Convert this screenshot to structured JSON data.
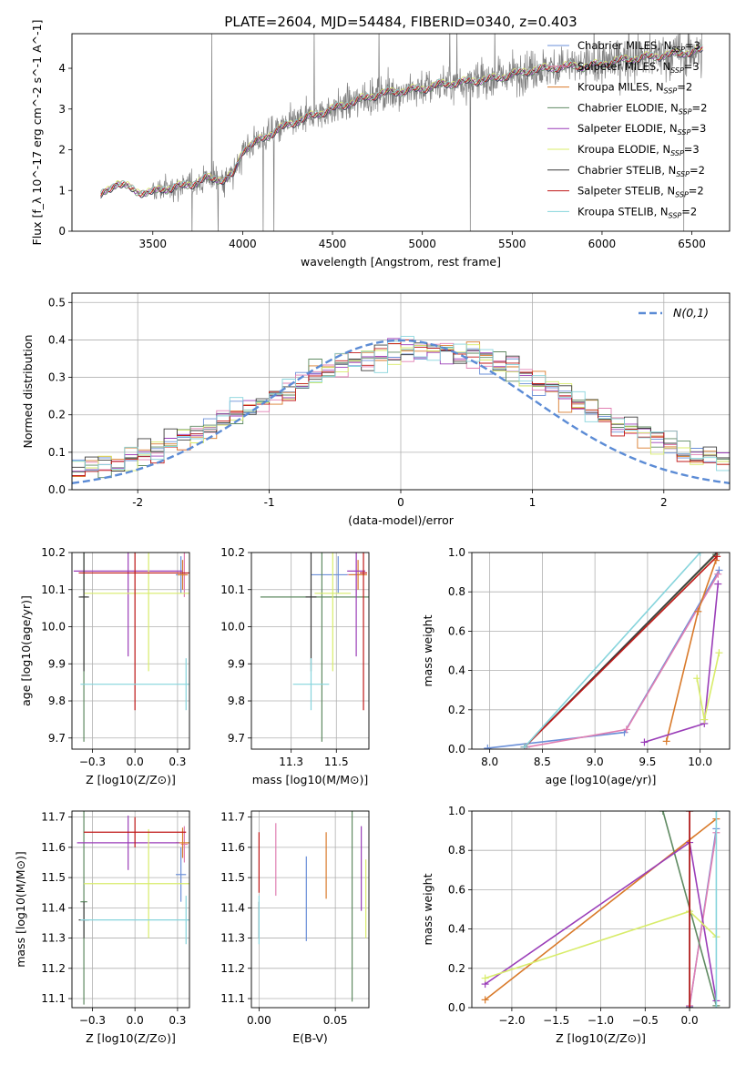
{
  "figure": {
    "title": "PLATE=2604, MJD=54484, FIBERID=0340, z=0.403"
  },
  "models": [
    {
      "name": "Chabrier MILES",
      "nssp": "3",
      "color": "#6a8fd8"
    },
    {
      "name": "Salpeter MILES",
      "nssp": "3",
      "color": "#e07fb2"
    },
    {
      "name": "Kroupa MILES",
      "nssp": "2",
      "color": "#d97a2a"
    },
    {
      "name": "Chabrier ELODIE",
      "nssp": "2",
      "color": "#5f8a62"
    },
    {
      "name": "Salpeter ELODIE",
      "nssp": "3",
      "color": "#9a3db8"
    },
    {
      "name": "Kroupa ELODIE",
      "nssp": "3",
      "color": "#d8ec6a"
    },
    {
      "name": "Chabrier STELIB",
      "nssp": "2",
      "color": "#3c3c3c"
    },
    {
      "name": "Salpeter STELIB",
      "nssp": "2",
      "color": "#c01818"
    },
    {
      "name": "Kroupa STELIB",
      "nssp": "2",
      "color": "#86d4dc"
    }
  ],
  "chart_data": [
    {
      "type": "line",
      "id": "spectrum",
      "xlabel": "wavelength [Angstrom, rest frame]",
      "ylabel": "Flux [f_λ 10^-17 erg cm^-2 s^-1 A^-1]",
      "xlim": [
        3050,
        6710
      ],
      "ylim": [
        0,
        4.85
      ],
      "xticks": [
        3500,
        4000,
        4500,
        5000,
        5500,
        6000,
        6500
      ],
      "yticks": [
        0,
        1,
        2,
        3,
        4
      ],
      "continuum": {
        "x": [
          3210,
          3260,
          3300,
          3350,
          3400,
          3450,
          3500,
          3550,
          3600,
          3650,
          3700,
          3750,
          3800,
          3850,
          3900,
          3950,
          4000,
          4100,
          4200,
          4300,
          4400,
          4500,
          4600,
          4700,
          4800,
          4900,
          5000,
          5100,
          5200,
          5300,
          5400,
          5500,
          5600,
          5700,
          5800,
          5900,
          6000,
          6100,
          6200,
          6300,
          6400,
          6500,
          6560
        ],
        "y": [
          0.85,
          1.05,
          1.2,
          1.1,
          1.0,
          0.95,
          0.95,
          1.05,
          1.05,
          1.1,
          1.15,
          1.2,
          1.3,
          1.3,
          1.25,
          1.4,
          2.0,
          2.25,
          2.5,
          2.7,
          2.85,
          3.0,
          3.15,
          3.3,
          3.4,
          3.45,
          3.5,
          3.6,
          3.65,
          3.7,
          3.75,
          3.85,
          3.95,
          4.0,
          4.05,
          4.05,
          4.1,
          4.2,
          4.25,
          4.3,
          4.35,
          4.4,
          4.45
        ]
      },
      "data_noise_start": 3500
    },
    {
      "type": "histogram",
      "id": "residuals",
      "xlabel": "(data-model)/error",
      "ylabel": "Normed distribution",
      "xlim": [
        -2.5,
        2.5
      ],
      "ylim": [
        0,
        0.525
      ],
      "xticks": [
        -2,
        -1,
        0,
        1,
        2
      ],
      "yticks": [
        0.0,
        0.1,
        0.2,
        0.3,
        0.4,
        0.5
      ],
      "bin_width": 0.1,
      "gaussian_label": "N(0,1)",
      "gaussian_color": "#5b8bd5",
      "legend_position": "top-right"
    },
    {
      "type": "errorbar",
      "id": "age-vs-Z",
      "xlabel": "Z [log10(Z/Z⊙)]",
      "ylabel": "age  [log10(age/yr)]",
      "xlim": [
        -0.37,
        0.32
      ],
      "ylim": [
        9.67,
        10.2
      ],
      "xticks": [
        -0.25,
        0.0,
        0.25
      ],
      "yticks": [
        9.7,
        9.8,
        9.9,
        10.0,
        10.1,
        10.2
      ],
      "points": [
        {
          "model": 0,
          "x": 0.27,
          "y": 10.14,
          "xerr": 0.03,
          "yerr": 0.05
        },
        {
          "model": 1,
          "x": 0.29,
          "y": 10.14,
          "xerr": 0.02,
          "yerr": 0.06
        },
        {
          "model": 2,
          "x": 0.28,
          "y": 10.14,
          "xerr": 0.03,
          "yerr": 0.04
        },
        {
          "model": 3,
          "x": -0.3,
          "y": 10.08,
          "xerr": 0.02,
          "yerr": 0.39
        },
        {
          "model": 4,
          "x": -0.04,
          "y": 10.15,
          "xerr": 0.32,
          "yerr": 0.23
        },
        {
          "model": 5,
          "x": 0.08,
          "y": 10.09,
          "xerr": 0.38,
          "yerr": 0.21
        },
        {
          "model": 6,
          "x": -0.3,
          "y": 10.08,
          "xerr": 0.03,
          "yerr": 0.2
        },
        {
          "model": 7,
          "x": 0.0,
          "y": 10.145,
          "xerr": 0.33,
          "yerr": 0.37
        },
        {
          "model": 8,
          "x": 0.3,
          "y": 9.845,
          "xerr": 0.62,
          "yerr": 0.07
        }
      ]
    },
    {
      "type": "errorbar",
      "id": "age-vs-mass",
      "xlabel": "mass [log10(M/M⊙)]",
      "ylabel": "",
      "xlim": [
        11.03,
        11.68
      ],
      "ylim": [
        9.67,
        10.2
      ],
      "xticks": [
        11.25,
        11.5
      ],
      "yticks": [
        9.7,
        9.8,
        9.9,
        10.0,
        10.1,
        10.2
      ],
      "points": [
        {
          "model": 0,
          "x": 11.51,
          "y": 10.14,
          "xerr": 0.15,
          "yerr": 0.05
        },
        {
          "model": 1,
          "x": 11.61,
          "y": 10.14,
          "xerr": 0.05,
          "yerr": 0.06
        },
        {
          "model": 2,
          "x": 11.62,
          "y": 10.14,
          "xerr": 0.05,
          "yerr": 0.04
        },
        {
          "model": 3,
          "x": 11.42,
          "y": 10.08,
          "xerr": 0.34,
          "yerr": 0.39
        },
        {
          "model": 4,
          "x": 11.61,
          "y": 10.15,
          "xerr": 0.05,
          "yerr": 0.23
        },
        {
          "model": 5,
          "x": 11.48,
          "y": 10.09,
          "xerr": 0.1,
          "yerr": 0.21
        },
        {
          "model": 6,
          "x": 11.36,
          "y": 10.08,
          "xerr": 0.03,
          "yerr": 0.2
        },
        {
          "model": 7,
          "x": 11.65,
          "y": 10.145,
          "xerr": 0.02,
          "yerr": 0.37
        },
        {
          "model": 8,
          "x": 11.36,
          "y": 9.845,
          "xerr": 0.1,
          "yerr": 0.07
        }
      ]
    },
    {
      "type": "line",
      "id": "massweight-vs-age",
      "xlabel": "age  [log10(age/yr)]",
      "ylabel": "mass weight",
      "xlim": [
        7.83,
        10.28
      ],
      "ylim": [
        0,
        1.0
      ],
      "xticks": [
        8.0,
        8.5,
        9.0,
        9.5,
        10.0
      ],
      "yticks": [
        0.0,
        0.2,
        0.4,
        0.6,
        0.8,
        1.0
      ],
      "series": [
        {
          "model": 0,
          "x": [
            7.98,
            9.28,
            10.18
          ],
          "y": [
            0.005,
            0.085,
            0.91
          ]
        },
        {
          "model": 1,
          "x": [
            8.35,
            9.3,
            10.17
          ],
          "y": [
            0.01,
            0.1,
            0.89
          ]
        },
        {
          "model": 2,
          "x": [
            9.68,
            9.98,
            10.15
          ],
          "y": [
            0.04,
            0.7,
            0.96
          ]
        },
        {
          "model": 3,
          "x": [
            8.33,
            10.15
          ],
          "y": [
            0.01,
            0.99
          ]
        },
        {
          "model": 4,
          "x": [
            9.47,
            10.04,
            10.17
          ],
          "y": [
            0.035,
            0.13,
            0.84
          ]
        },
        {
          "model": 5,
          "x": [
            9.97,
            10.04,
            10.18
          ],
          "y": [
            0.36,
            0.15,
            0.49
          ]
        },
        {
          "model": 6,
          "x": [
            8.33,
            10.16
          ],
          "y": [
            0.01,
            1.0
          ]
        },
        {
          "model": 7,
          "x": [
            8.33,
            10.16
          ],
          "y": [
            0.01,
            0.98
          ]
        },
        {
          "model": 8,
          "x": [
            8.33,
            10.0
          ],
          "y": [
            0.01,
            1.0
          ]
        }
      ]
    },
    {
      "type": "errorbar",
      "id": "mass-vs-Z",
      "xlabel": "Z [log10(Z/Z⊙)]",
      "ylabel": "mass [log10(M/M⊙)]",
      "xlim": [
        -0.37,
        0.32
      ],
      "ylim": [
        11.07,
        11.72
      ],
      "xticks": [
        -0.25,
        0.0,
        0.25
      ],
      "yticks": [
        11.1,
        11.2,
        11.3,
        11.4,
        11.5,
        11.6,
        11.7
      ],
      "points": [
        {
          "model": 0,
          "x": 0.27,
          "y": 11.51,
          "xerr": 0.03,
          "yerr": 0.09
        },
        {
          "model": 1,
          "x": 0.29,
          "y": 11.61,
          "xerr": 0.02,
          "yerr": 0.06
        },
        {
          "model": 2,
          "x": 0.28,
          "y": 11.615,
          "xerr": 0.04,
          "yerr": 0.05
        },
        {
          "model": 3,
          "x": -0.3,
          "y": 11.42,
          "xerr": 0.02,
          "yerr": 0.34
        },
        {
          "model": 4,
          "x": -0.04,
          "y": 11.615,
          "xerr": 0.3,
          "yerr": 0.09
        },
        {
          "model": 5,
          "x": 0.08,
          "y": 11.48,
          "xerr": 0.38,
          "yerr": 0.18
        },
        {
          "model": 6,
          "x": -0.3,
          "y": 11.36,
          "xerr": 0.03,
          "yerr": 0.06
        },
        {
          "model": 7,
          "x": 0.0,
          "y": 11.65,
          "xerr": 0.3,
          "yerr": 0.05
        },
        {
          "model": 8,
          "x": 0.3,
          "y": 11.36,
          "xerr": 0.62,
          "yerr": 0.08
        }
      ]
    },
    {
      "type": "errorbar",
      "id": "mass-vs-ebv",
      "xlabel": "E(B-V)",
      "ylabel": "",
      "xlim": [
        -0.005,
        0.072
      ],
      "ylim": [
        11.07,
        11.72
      ],
      "xticks": [
        0.0,
        0.05
      ],
      "yticks": [
        11.1,
        11.2,
        11.3,
        11.4,
        11.5,
        11.6,
        11.7
      ],
      "points": [
        {
          "model": 0,
          "x": 0.031,
          "y": 11.43,
          "xerr": 0,
          "yerr": 0.14
        },
        {
          "model": 1,
          "x": 0.011,
          "y": 11.56,
          "xerr": 0,
          "yerr": 0.12
        },
        {
          "model": 2,
          "x": 0.044,
          "y": 11.54,
          "xerr": 0,
          "yerr": 0.11
        },
        {
          "model": 3,
          "x": 0.061,
          "y": 11.42,
          "xerr": 0,
          "yerr": 0.33
        },
        {
          "model": 4,
          "x": 0.067,
          "y": 11.53,
          "xerr": 0,
          "yerr": 0.14
        },
        {
          "model": 5,
          "x": 0.07,
          "y": 11.43,
          "xerr": 0,
          "yerr": 0.13
        },
        {
          "model": 6,
          "x": 0.0,
          "y": 11.36,
          "xerr": 0,
          "yerr": 0.06
        },
        {
          "model": 7,
          "x": 0.0,
          "y": 11.55,
          "xerr": 0,
          "yerr": 0.1
        },
        {
          "model": 8,
          "x": 0.0,
          "y": 11.36,
          "xerr": 0,
          "yerr": 0.08
        }
      ]
    },
    {
      "type": "line",
      "id": "massweight-vs-Z",
      "xlabel": "Z [log10(Z/Z⊙)]",
      "ylabel": "mass weight",
      "xlim": [
        -2.45,
        0.45
      ],
      "ylim": [
        0,
        1.0
      ],
      "xticks": [
        -2.0,
        -1.5,
        -1.0,
        -0.5,
        0.0
      ],
      "yticks": [
        0.0,
        0.2,
        0.4,
        0.6,
        0.8,
        1.0
      ],
      "series": [
        {
          "model": 0,
          "x": [
            0.0,
            0.3
          ],
          "y": [
            0.005,
            0.91
          ]
        },
        {
          "model": 1,
          "x": [
            0.0,
            0.3
          ],
          "y": [
            0.01,
            0.89
          ]
        },
        {
          "model": 2,
          "x": [
            -2.3,
            0.3
          ],
          "y": [
            0.04,
            0.96
          ]
        },
        {
          "model": 3,
          "x": [
            -0.3,
            0.3
          ],
          "y": [
            1.0,
            0.01
          ]
        },
        {
          "model": 4,
          "x": [
            -2.3,
            0.0,
            0.3
          ],
          "y": [
            0.12,
            0.84,
            0.035
          ]
        },
        {
          "model": 5,
          "x": [
            -2.3,
            0.0,
            0.3
          ],
          "y": [
            0.15,
            0.49,
            0.36
          ]
        },
        {
          "model": 6,
          "x": [
            0.0,
            0.0
          ],
          "y": [
            0.0,
            1.0
          ]
        },
        {
          "model": 7,
          "x": [
            0.0,
            0.0
          ],
          "y": [
            0.0,
            1.0
          ]
        },
        {
          "model": 8,
          "x": [
            0.3,
            0.3
          ],
          "y": [
            0.0,
            1.0
          ]
        }
      ]
    }
  ]
}
